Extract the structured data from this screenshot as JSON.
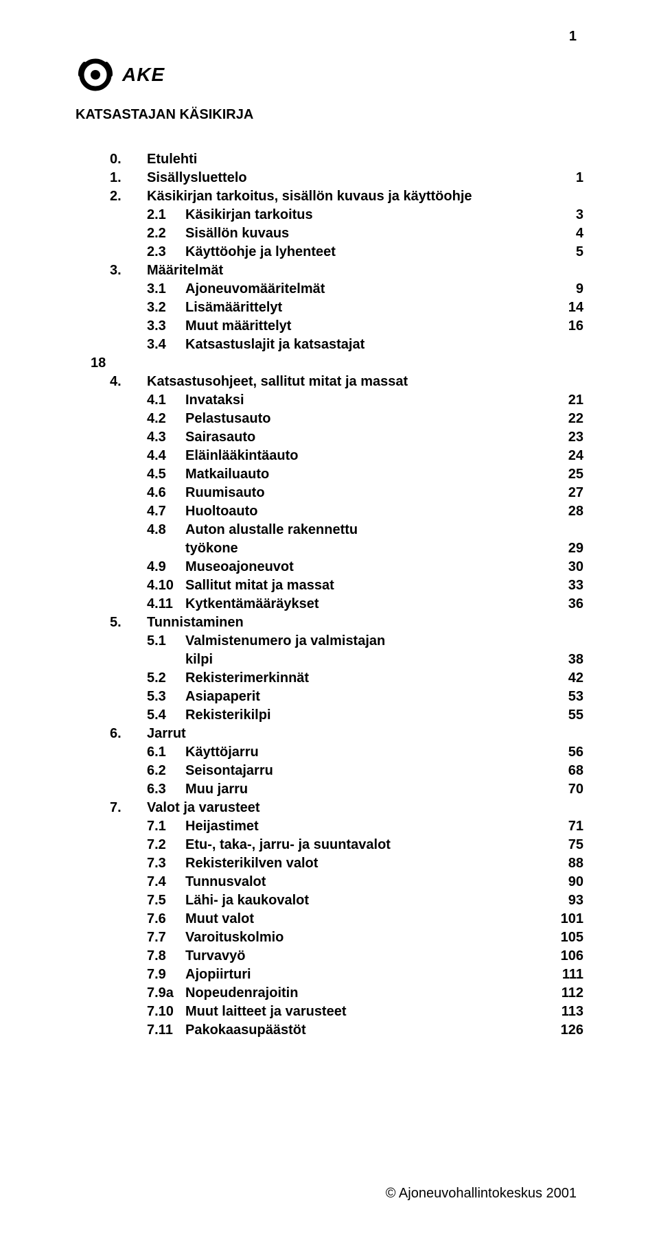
{
  "page_number": "1",
  "logo_text": "AKE",
  "title": "KATSASTAJAN KÄSIKIRJA",
  "special_entry_standalone": "18",
  "toc": [
    {
      "type": "section",
      "num": "0.",
      "label": "Etulehti",
      "page": ""
    },
    {
      "type": "section",
      "num": "1.",
      "label": "Sisällysluettelo",
      "page": "1"
    },
    {
      "type": "section",
      "num": "2.",
      "label": "Käsikirjan tarkoitus, sisällön kuvaus ja käyttöohje",
      "page": ""
    },
    {
      "type": "sub",
      "num": "2.1",
      "label": "Käsikirjan tarkoitus",
      "page": "3"
    },
    {
      "type": "sub",
      "num": "2.2",
      "label": "Sisällön kuvaus",
      "page": "4"
    },
    {
      "type": "sub",
      "num": "2.3",
      "label": "Käyttöohje ja lyhenteet",
      "page": "5"
    },
    {
      "type": "section",
      "num": "3.",
      "label": "Määritelmät",
      "page": ""
    },
    {
      "type": "sub",
      "num": "3.1",
      "label": "Ajoneuvomääritelmät",
      "page": "9"
    },
    {
      "type": "sub",
      "num": "3.2",
      "label": "Lisämäärittelyt",
      "page": "14"
    },
    {
      "type": "sub",
      "num": "3.3",
      "label": "Muut määrittelyt",
      "page": "16"
    },
    {
      "type": "sub",
      "num": "3.4",
      "label": "Katsastuslajit ja katsastajat",
      "page": ""
    },
    {
      "type": "standalone18"
    },
    {
      "type": "section",
      "num": "4.",
      "label": "Katsastusohjeet, sallitut mitat ja massat",
      "page": ""
    },
    {
      "type": "sub",
      "num": "4.1",
      "label": "Invataksi",
      "page": "21"
    },
    {
      "type": "sub",
      "num": "4.2",
      "label": "Pelastusauto",
      "page": "22"
    },
    {
      "type": "sub",
      "num": "4.3",
      "label": "Sairasauto",
      "page": "23"
    },
    {
      "type": "sub",
      "num": "4.4",
      "label": "Eläinlääkintäauto",
      "page": "24"
    },
    {
      "type": "sub",
      "num": "4.5",
      "label": "Matkailuauto",
      "page": "25"
    },
    {
      "type": "sub",
      "num": "4.6",
      "label": "Ruumisauto",
      "page": "27"
    },
    {
      "type": "sub",
      "num": "4.7",
      "label": "Huoltoauto",
      "page": "28"
    },
    {
      "type": "sub",
      "num": "4.8",
      "label": "Auton alustalle rakennettu",
      "page": ""
    },
    {
      "type": "continuation",
      "label": "työkone",
      "page": "29"
    },
    {
      "type": "sub",
      "num": "4.9",
      "label": "Museoajoneuvot",
      "page": "30"
    },
    {
      "type": "sub",
      "num": "4.10",
      "label": "Sallitut mitat ja massat",
      "page": "33"
    },
    {
      "type": "sub",
      "num": "4.11",
      "label": "Kytkentämääräykset",
      "page": "36"
    },
    {
      "type": "section",
      "num": "5.",
      "label": "Tunnistaminen",
      "page": ""
    },
    {
      "type": "sub",
      "num": "5.1",
      "label": "Valmistenumero ja valmistajan",
      "page": ""
    },
    {
      "type": "continuation",
      "label": "kilpi",
      "page": "38"
    },
    {
      "type": "sub",
      "num": "5.2",
      "label": "Rekisterimerkinnät",
      "page": "42"
    },
    {
      "type": "sub",
      "num": "5.3",
      "label": "Asiapaperit",
      "page": "53"
    },
    {
      "type": "sub",
      "num": "5.4",
      "label": "Rekisterikilpi",
      "page": "55"
    },
    {
      "type": "section",
      "num": "6.",
      "label": "Jarrut",
      "page": ""
    },
    {
      "type": "sub",
      "num": "6.1",
      "label": "Käyttöjarru",
      "page": "56"
    },
    {
      "type": "sub",
      "num": "6.2",
      "label": "Seisontajarru",
      "page": "68"
    },
    {
      "type": "sub",
      "num": "6.3",
      "label": "Muu jarru",
      "page": "70"
    },
    {
      "type": "section",
      "num": "7.",
      "label": "Valot ja varusteet",
      "page": ""
    },
    {
      "type": "sub",
      "num": "7.1",
      "label": "Heijastimet",
      "page": "71"
    },
    {
      "type": "sub",
      "num": "7.2",
      "label": "Etu-, taka-, jarru- ja suuntavalot",
      "page": "75"
    },
    {
      "type": "sub",
      "num": "7.3",
      "label": "Rekisterikilven valot",
      "page": "88"
    },
    {
      "type": "sub",
      "num": "7.4",
      "label": "Tunnusvalot",
      "page": "90"
    },
    {
      "type": "sub",
      "num": "7.5",
      "label": "Lähi- ja kaukovalot",
      "page": "93"
    },
    {
      "type": "sub",
      "num": "7.6",
      "label": "Muut valot",
      "page": "101"
    },
    {
      "type": "sub",
      "num": "7.7",
      "label": "Varoituskolmio",
      "page": "105"
    },
    {
      "type": "sub",
      "num": "7.8",
      "label": "Turvavyö",
      "page": "106"
    },
    {
      "type": "sub",
      "num": "7.9",
      "label": "Ajopiirturi",
      "page": "111"
    },
    {
      "type": "sub",
      "num": "7.9a",
      "label": "Nopeudenrajoitin",
      "page": "112"
    },
    {
      "type": "sub",
      "num": "7.10",
      "label": "Muut laitteet ja varusteet",
      "page": "113"
    },
    {
      "type": "sub",
      "num": "7.11",
      "label": "Pakokaasupäästöt",
      "page": "126"
    }
  ],
  "footer": "© Ajoneuvohallintokeskus 2001",
  "colors": {
    "text": "#000000",
    "background": "#ffffff"
  },
  "fonts": {
    "body_family": "Arial",
    "body_size_pt": 15,
    "body_weight": "bold"
  }
}
